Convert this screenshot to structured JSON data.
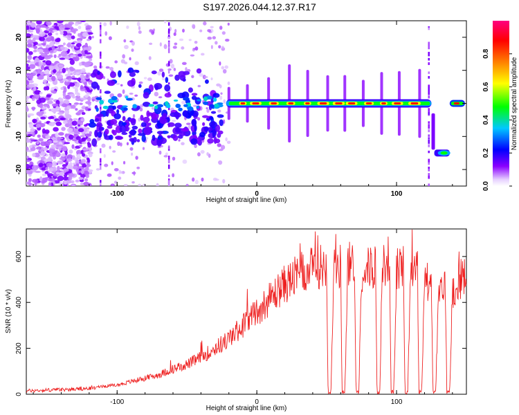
{
  "figure": {
    "title": "S197.2026.044.12.37.R17"
  },
  "chart_data": [
    {
      "type": "heatmap",
      "xlabel": "Height of straight line (km)",
      "ylabel": "Frequency (Hz)",
      "xlim": [
        -165,
        150
      ],
      "ylim": [
        -25,
        25
      ],
      "xticks": [
        -100,
        0,
        100
      ],
      "yticks": [
        -20,
        -10,
        0,
        10,
        20
      ],
      "colorbar": {
        "label": "Normalized spectral amplitude",
        "range": [
          0,
          1
        ],
        "ticks": [
          0.0,
          0.2,
          0.4,
          0.6,
          0.8
        ],
        "tick_labels": [
          "0.0",
          "0.2",
          "0.4",
          "0.6",
          "0.8"
        ],
        "colors": [
          "#ffffff",
          "#e6d0ff",
          "#8a00ff",
          "#0000ff",
          "#00c8ff",
          "#00ff00",
          "#ffff00",
          "#ff8000",
          "#ff0000",
          "#ff0080"
        ]
      },
      "features": [
        {
          "name": "noise region",
          "x_range": [
            -165,
            -120
          ],
          "freq_range": [
            -25,
            25
          ],
          "amplitude": 0.15
        },
        {
          "name": "main signal line",
          "x_range": [
            -120,
            125
          ],
          "freq": 0,
          "amplitude_peak": 0.9
        },
        {
          "name": "lower branch",
          "x_range": [
            127,
            138
          ],
          "freq": -15,
          "amplitude": 0.35
        },
        {
          "name": "right segment",
          "x_range": [
            138,
            150
          ],
          "freq": 0,
          "amplitude": 0.85
        }
      ]
    },
    {
      "type": "line",
      "xlabel": "Height of straight line (km)",
      "ylabel": "SNR (10 * v/v)",
      "xlim": [
        -165,
        150
      ],
      "ylim": [
        0,
        720
      ],
      "xticks": [
        -100,
        0,
        100
      ],
      "yticks": [
        0,
        200,
        400,
        600
      ],
      "series": [
        {
          "name": "SNR",
          "color": "#ee2020",
          "x": [
            -165,
            -150,
            -140,
            -130,
            -120,
            -110,
            -100,
            -90,
            -80,
            -70,
            -60,
            -50,
            -40,
            -30,
            -20,
            -10,
            0,
            10,
            20,
            30,
            40,
            45,
            50,
            51,
            53,
            55,
            60,
            61,
            63,
            65,
            70,
            71,
            73,
            75,
            80,
            85,
            86,
            88,
            90,
            95,
            96,
            98,
            100,
            105,
            106,
            108,
            110,
            115,
            116,
            118,
            120,
            125,
            126,
            128,
            130,
            135,
            136,
            138,
            140,
            145,
            150
          ],
          "values": [
            15,
            18,
            20,
            22,
            25,
            35,
            40,
            55,
            70,
            85,
            110,
            130,
            160,
            200,
            240,
            300,
            360,
            420,
            480,
            520,
            545,
            560,
            560,
            10,
            10,
            540,
            560,
            10,
            10,
            550,
            570,
            10,
            10,
            540,
            550,
            560,
            10,
            10,
            550,
            600,
            10,
            10,
            540,
            560,
            10,
            10,
            550,
            540,
            10,
            10,
            500,
            480,
            10,
            10,
            430,
            470,
            10,
            10,
            450,
            500,
            520
          ]
        }
      ]
    }
  ]
}
